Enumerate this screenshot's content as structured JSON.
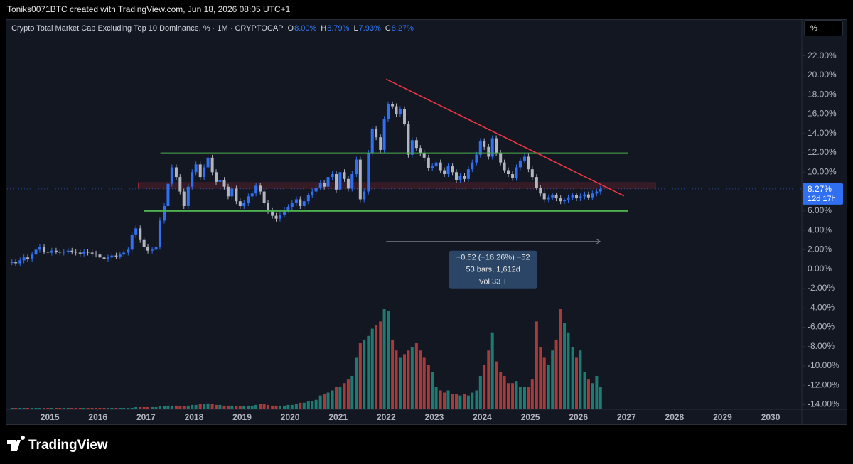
{
  "header": "Toniks0071BTC created with TradingView.com, Jun 18, 2026 08:05 UTC+1",
  "legend": {
    "title": "Crypto Total Market Cap Excluding Top 10 Dominance, % · 1M · CRYPTOCAP",
    "items": [
      {
        "key": "O",
        "value": "8.00%"
      },
      {
        "key": "H",
        "value": "8.79%"
      },
      {
        "key": "L",
        "value": "7.93%"
      },
      {
        "key": "C",
        "value": "8.27%"
      }
    ]
  },
  "scale_button": "%",
  "price_label": "8.27%",
  "countdown": "12d 17h",
  "measure_box": [
    "−0.52 (−16.26%) −52",
    "53 bars, 1,612d",
    "Vol 33 T"
  ],
  "footer": "TradingView",
  "chart_data": {
    "type": "candlestick",
    "up_color": "#2f6ff0",
    "down_color": "#b2b5be",
    "volume_up_color": "#1f7a72",
    "volume_down_color": "#a83a3a",
    "xlim": [
      2014.11,
      2030.65
    ],
    "xticks": [
      2015,
      2016,
      2017,
      2018,
      2019,
      2020,
      2021,
      2022,
      2023,
      2024,
      2025,
      2026,
      2027,
      2028,
      2029,
      2030
    ],
    "ylim": [
      -14.4,
      24.1
    ],
    "yticks": [
      {
        "value": 22,
        "label": "22.00%"
      },
      {
        "value": 20,
        "label": "20.00%"
      },
      {
        "value": 18,
        "label": "18.00%"
      },
      {
        "value": 16,
        "label": "16.00%"
      },
      {
        "value": 14,
        "label": "14.00%"
      },
      {
        "value": 12,
        "label": "12.00%"
      },
      {
        "value": 10,
        "label": "10.00%"
      },
      {
        "value": 8,
        "label": "8.00%"
      },
      {
        "value": 6,
        "label": "6.00%"
      },
      {
        "value": 4,
        "label": "4.00%"
      },
      {
        "value": 2,
        "label": "2.00%"
      },
      {
        "value": 0,
        "label": "0.00%"
      },
      {
        "value": -2,
        "label": "-2.00%"
      },
      {
        "value": -4,
        "label": "-4.00%"
      },
      {
        "value": -6,
        "label": "-6.00%"
      },
      {
        "value": -8,
        "label": "-8.00%"
      },
      {
        "value": -10,
        "label": "-10.00%"
      },
      {
        "value": -12,
        "label": "-12.00%"
      },
      {
        "value": -14,
        "label": "-14.00%"
      }
    ],
    "x": [
      2014.21,
      2014.29,
      2014.38,
      2014.46,
      2014.54,
      2014.63,
      2014.71,
      2014.79,
      2014.88,
      2014.96,
      2015.04,
      2015.13,
      2015.21,
      2015.29,
      2015.38,
      2015.46,
      2015.54,
      2015.63,
      2015.71,
      2015.79,
      2015.88,
      2015.96,
      2016.04,
      2016.13,
      2016.21,
      2016.29,
      2016.38,
      2016.46,
      2016.54,
      2016.63,
      2016.71,
      2016.79,
      2016.88,
      2016.96,
      2017.04,
      2017.13,
      2017.21,
      2017.29,
      2017.38,
      2017.46,
      2017.54,
      2017.63,
      2017.71,
      2017.79,
      2017.88,
      2017.96,
      2018.04,
      2018.13,
      2018.21,
      2018.29,
      2018.38,
      2018.46,
      2018.54,
      2018.63,
      2018.71,
      2018.79,
      2018.88,
      2018.96,
      2019.04,
      2019.13,
      2019.21,
      2019.29,
      2019.38,
      2019.46,
      2019.54,
      2019.63,
      2019.71,
      2019.79,
      2019.88,
      2019.96,
      2020.04,
      2020.13,
      2020.21,
      2020.29,
      2020.38,
      2020.46,
      2020.54,
      2020.63,
      2020.71,
      2020.79,
      2020.88,
      2020.96,
      2021.04,
      2021.13,
      2021.21,
      2021.29,
      2021.38,
      2021.46,
      2021.54,
      2021.63,
      2021.71,
      2021.79,
      2021.88,
      2021.96,
      2022.04,
      2022.13,
      2022.21,
      2022.29,
      2022.38,
      2022.46,
      2022.54,
      2022.63,
      2022.71,
      2022.79,
      2022.88,
      2022.96,
      2023.04,
      2023.13,
      2023.21,
      2023.29,
      2023.38,
      2023.46,
      2023.54,
      2023.63,
      2023.71,
      2023.79,
      2023.88,
      2023.96,
      2024.04,
      2024.13,
      2024.21,
      2024.29,
      2024.38,
      2024.46,
      2024.54,
      2024.63,
      2024.71,
      2024.79,
      2024.88,
      2024.96,
      2025.04,
      2025.13,
      2025.21,
      2025.29,
      2025.38,
      2025.46,
      2025.54,
      2025.63,
      2025.71,
      2025.79,
      2025.88,
      2025.96,
      2026.04,
      2026.13,
      2026.21,
      2026.29,
      2026.38,
      2026.46
    ],
    "close": [
      0.7,
      0.6,
      0.9,
      1.2,
      1.0,
      1.5,
      2.0,
      2.3,
      1.8,
      1.7,
      1.9,
      1.8,
      1.7,
      1.8,
      1.9,
      1.8,
      1.7,
      1.6,
      1.8,
      1.7,
      1.6,
      1.5,
      1.2,
      1.0,
      1.2,
      1.4,
      1.3,
      1.5,
      1.7,
      2.0,
      3.5,
      4.2,
      3.0,
      2.3,
      1.9,
      2.0,
      2.3,
      5.0,
      6.5,
      8.8,
      10.5,
      9.5,
      8.0,
      6.5,
      8.5,
      10.0,
      10.8,
      9.5,
      10.5,
      11.5,
      10.0,
      9.0,
      9.2,
      8.5,
      7.5,
      8.3,
      7.0,
      6.5,
      6.8,
      7.5,
      7.8,
      8.6,
      8.0,
      6.8,
      6.0,
      5.5,
      5.2,
      5.6,
      6.1,
      6.4,
      6.8,
      7.2,
      6.5,
      7.0,
      7.6,
      8.0,
      8.4,
      8.9,
      8.5,
      9.5,
      9.8,
      8.2,
      10.0,
      9.3,
      8.3,
      9.8,
      11.3,
      7.2,
      8.0,
      12.0,
      14.5,
      13.6,
      12.3,
      15.5,
      17.0,
      16.8,
      16.0,
      16.5,
      15.0,
      11.8,
      13.3,
      12.5,
      12.0,
      11.5,
      10.4,
      10.6,
      11.0,
      10.2,
      9.8,
      10.6,
      10.0,
      9.2,
      9.6,
      9.3,
      10.3,
      11.0,
      11.8,
      13.2,
      12.6,
      11.6,
      13.5,
      12.0,
      11.0,
      10.2,
      9.8,
      9.4,
      10.5,
      11.2,
      11.6,
      10.3,
      9.5,
      8.4,
      7.8,
      7.2,
      7.4,
      7.6,
      7.3,
      7.0,
      7.1,
      7.4,
      7.6,
      7.3,
      7.5,
      7.7,
      7.4,
      7.8,
      8.0,
      8.27
    ],
    "volume": [
      1,
      1,
      1,
      1,
      1,
      1,
      1,
      1,
      1,
      1,
      1,
      1,
      1,
      1,
      1,
      1,
      1,
      1,
      1,
      1,
      1,
      1,
      1,
      1,
      1,
      1,
      1,
      1,
      1,
      1,
      1,
      2,
      2,
      2,
      2,
      2,
      2,
      3,
      3,
      4,
      4,
      4,
      3,
      3,
      4,
      5,
      5,
      6,
      6,
      7,
      6,
      5,
      5,
      4,
      4,
      4,
      3,
      3,
      3,
      4,
      4,
      5,
      6,
      6,
      5,
      4,
      4,
      4,
      4,
      5,
      5,
      6,
      8,
      8,
      10,
      10,
      12,
      18,
      20,
      22,
      25,
      30,
      30,
      35,
      40,
      45,
      70,
      90,
      95,
      100,
      110,
      115,
      120,
      137,
      135,
      95,
      80,
      70,
      75,
      80,
      85,
      90,
      80,
      70,
      60,
      50,
      30,
      25,
      22,
      25,
      20,
      20,
      18,
      20,
      18,
      22,
      25,
      45,
      60,
      80,
      105,
      65,
      50,
      45,
      35,
      35,
      38,
      30,
      30,
      30,
      40,
      120,
      85,
      70,
      60,
      80,
      95,
      137,
      118,
      105,
      85,
      70,
      80,
      50,
      40,
      35,
      45,
      30
    ],
    "horizontal_lines": [
      {
        "value": 11.95,
        "from": 2017.3,
        "to": 2027.03,
        "color": "#4caf50"
      },
      {
        "value": 6.0,
        "from": 2016.96,
        "to": 2027.03,
        "color": "#4caf50"
      }
    ],
    "band": {
      "low": 8.35,
      "high": 8.9,
      "from": 2016.84,
      "to": 2027.6,
      "color": "#f23645"
    },
    "trendline": {
      "x": [
        2022.0,
        2026.95
      ],
      "y": [
        19.6,
        7.55
      ],
      "color": "#f23645"
    },
    "measure": {
      "x": [
        2022.0,
        2026.45
      ],
      "y": 2.85
    }
  }
}
